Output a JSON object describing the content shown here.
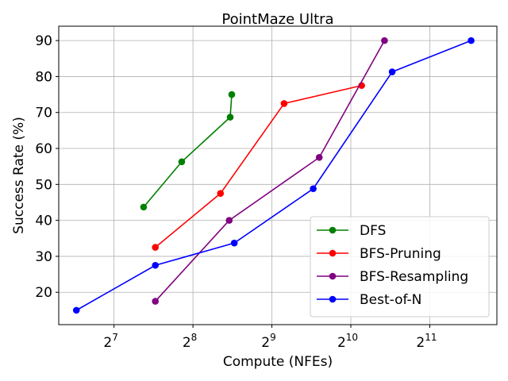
{
  "chart_data": {
    "type": "line",
    "title": "PointMaze Ultra",
    "xlabel": "Compute (NFEs)",
    "ylabel": "Success Rate (%)",
    "x_scale": "log2",
    "xlim_log2": [
      6.3,
      11.85
    ],
    "ylim": [
      11,
      94
    ],
    "x_ticks": [
      {
        "base": "2",
        "exp": "7",
        "log2": 7
      },
      {
        "base": "2",
        "exp": "8",
        "log2": 8
      },
      {
        "base": "2",
        "exp": "9",
        "log2": 9
      },
      {
        "base": "2",
        "exp": "10",
        "log2": 10
      },
      {
        "base": "2",
        "exp": "11",
        "log2": 11
      }
    ],
    "y_ticks": [
      20,
      30,
      40,
      50,
      60,
      70,
      80,
      90
    ],
    "grid": true,
    "legend_position": "lower-right",
    "series": [
      {
        "name": "DFS",
        "color": "#008000",
        "points": [
          {
            "x": 166,
            "y": 43.7
          },
          {
            "x": 232,
            "y": 56.3
          },
          {
            "x": 355,
            "y": 68.7
          },
          {
            "x": 360,
            "y": 75.0
          }
        ]
      },
      {
        "name": "BFS-Pruning",
        "color": "#ff0000",
        "points": [
          {
            "x": 184,
            "y": 32.5
          },
          {
            "x": 326,
            "y": 47.5
          },
          {
            "x": 570,
            "y": 72.5
          },
          {
            "x": 1126,
            "y": 77.5
          }
        ]
      },
      {
        "name": "BFS-Resampling",
        "color": "#800080",
        "points": [
          {
            "x": 184,
            "y": 17.5
          },
          {
            "x": 352,
            "y": 40.0
          },
          {
            "x": 776,
            "y": 57.5
          },
          {
            "x": 1376,
            "y": 90.0
          }
        ]
      },
      {
        "name": "Best-of-N",
        "color": "#0000ff",
        "points": [
          {
            "x": 92,
            "y": 15.0
          },
          {
            "x": 184,
            "y": 27.5
          },
          {
            "x": 368,
            "y": 33.7
          },
          {
            "x": 736,
            "y": 48.8
          },
          {
            "x": 1472,
            "y": 81.3
          },
          {
            "x": 2944,
            "y": 90.0
          }
        ]
      }
    ]
  }
}
